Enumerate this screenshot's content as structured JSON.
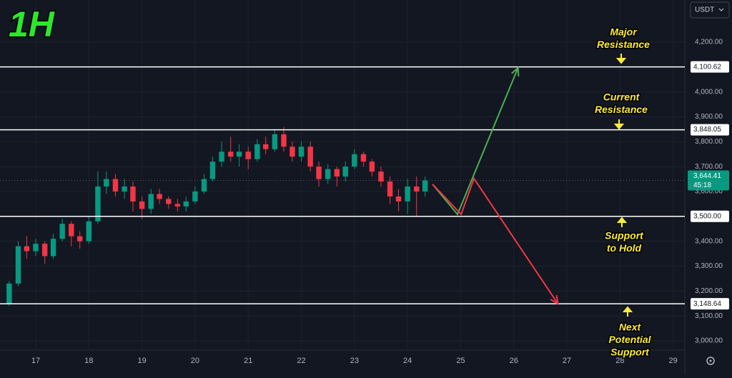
{
  "chart_data": {
    "type": "candlestick",
    "title": "1H",
    "currency": "USDT",
    "xlim": [
      16.327,
      29.22
    ],
    "ylim": [
      2962.5,
      4369.4
    ],
    "xticks": [
      17,
      18,
      19,
      20,
      21,
      22,
      23,
      24,
      25,
      26,
      27,
      28,
      29
    ],
    "yticks": [
      {
        "value": 3000,
        "label": "3,000.00"
      },
      {
        "value": 3100,
        "label": "3,100.00"
      },
      {
        "value": 3200,
        "label": "3,200.00"
      },
      {
        "value": 3300,
        "label": "3,300.00"
      },
      {
        "value": 3400,
        "label": "3,400.00"
      },
      {
        "value": 3500,
        "label": "3,500.00"
      },
      {
        "value": 3600,
        "label": "3,600.00"
      },
      {
        "value": 3700,
        "label": "3,700.00"
      },
      {
        "value": 3800,
        "label": "3,800.00"
      },
      {
        "value": 3900,
        "label": "3,900.00"
      },
      {
        "value": 4000,
        "label": "4,000.00"
      },
      {
        "value": 4100,
        "label": "4,100.00"
      },
      {
        "value": 4200,
        "label": "4,200.00"
      }
    ],
    "grid": true,
    "up_color": "#089981",
    "down_color": "#f23645",
    "candles": {
      "x": [
        16.5,
        16.67,
        16.83,
        17,
        17.17,
        17.33,
        17.5,
        17.67,
        17.83,
        18,
        18.17,
        18.33,
        18.5,
        18.67,
        18.83,
        19,
        19.17,
        19.33,
        19.5,
        19.67,
        19.83,
        20,
        20.17,
        20.33,
        20.5,
        20.67,
        20.83,
        21,
        21.17,
        21.33,
        21.5,
        21.67,
        21.83,
        22,
        22.17,
        22.33,
        22.5,
        22.67,
        22.83,
        23,
        23.17,
        23.33,
        23.5,
        23.67,
        23.83,
        24,
        24.17,
        24.33
      ],
      "open": [
        3150,
        3230,
        3380,
        3360,
        3390,
        3340,
        3410,
        3470,
        3420,
        3400,
        3480,
        3620,
        3650,
        3600,
        3620,
        3560,
        3530,
        3590,
        3570,
        3550,
        3540,
        3560,
        3600,
        3650,
        3720,
        3760,
        3740,
        3760,
        3730,
        3790,
        3770,
        3830,
        3780,
        3740,
        3780,
        3700,
        3650,
        3690,
        3660,
        3700,
        3750,
        3720,
        3680,
        3640,
        3580,
        3560,
        3620,
        3600
      ],
      "high": [
        3240,
        3400,
        3420,
        3410,
        3400,
        3430,
        3490,
        3480,
        3440,
        3500,
        3680,
        3680,
        3670,
        3650,
        3640,
        3580,
        3610,
        3610,
        3580,
        3570,
        3580,
        3620,
        3670,
        3740,
        3800,
        3820,
        3790,
        3780,
        3810,
        3820,
        3850,
        3860,
        3800,
        3800,
        3800,
        3720,
        3710,
        3700,
        3720,
        3770,
        3760,
        3730,
        3700,
        3660,
        3610,
        3650,
        3660,
        3660
      ],
      "low": [
        3140,
        3220,
        3330,
        3340,
        3310,
        3330,
        3400,
        3380,
        3370,
        3390,
        3470,
        3590,
        3580,
        3570,
        3520,
        3490,
        3510,
        3550,
        3530,
        3520,
        3520,
        3550,
        3590,
        3640,
        3700,
        3720,
        3700,
        3690,
        3720,
        3750,
        3760,
        3760,
        3720,
        3720,
        3680,
        3620,
        3630,
        3620,
        3640,
        3690,
        3700,
        3660,
        3620,
        3550,
        3520,
        3510,
        3500,
        3580
      ],
      "close": [
        3230,
        3380,
        3360,
        3390,
        3340,
        3410,
        3470,
        3420,
        3400,
        3480,
        3620,
        3650,
        3600,
        3620,
        3560,
        3530,
        3590,
        3570,
        3550,
        3540,
        3560,
        3600,
        3650,
        3720,
        3760,
        3740,
        3760,
        3730,
        3790,
        3770,
        3830,
        3780,
        3740,
        3780,
        3700,
        3650,
        3690,
        3660,
        3700,
        3750,
        3720,
        3680,
        3640,
        3580,
        3560,
        3620,
        3600,
        3644.41
      ]
    },
    "levels": [
      {
        "value": 4100.62,
        "label": "4,100.62"
      },
      {
        "value": 3848.05,
        "label": "3,848.05"
      },
      {
        "value": 3500.0,
        "label": "3,500.00"
      },
      {
        "value": 3148.64,
        "label": "3,148.64"
      }
    ],
    "last_price": {
      "value": 3644.41,
      "label": "3,644.41",
      "countdown": "45:18"
    },
    "projections": [
      {
        "color": "#4caf50",
        "x": [
          24.47,
          24.94,
          26.08
        ],
        "values": [
          3629,
          3508,
          4097
        ]
      },
      {
        "color": "#f23645",
        "x": [
          24.47,
          25.01,
          25.25,
          26.83
        ],
        "values": [
          3629,
          3508,
          3652,
          3149
        ]
      }
    ],
    "annotations": [
      {
        "lines": [
          "Major",
          "Resistance"
        ]
      },
      {
        "lines": [
          "Current",
          "Resistance"
        ]
      },
      {
        "lines": [
          "Support",
          "to Hold"
        ]
      },
      {
        "lines": [
          "Next",
          "Potential",
          "Support"
        ]
      }
    ]
  }
}
